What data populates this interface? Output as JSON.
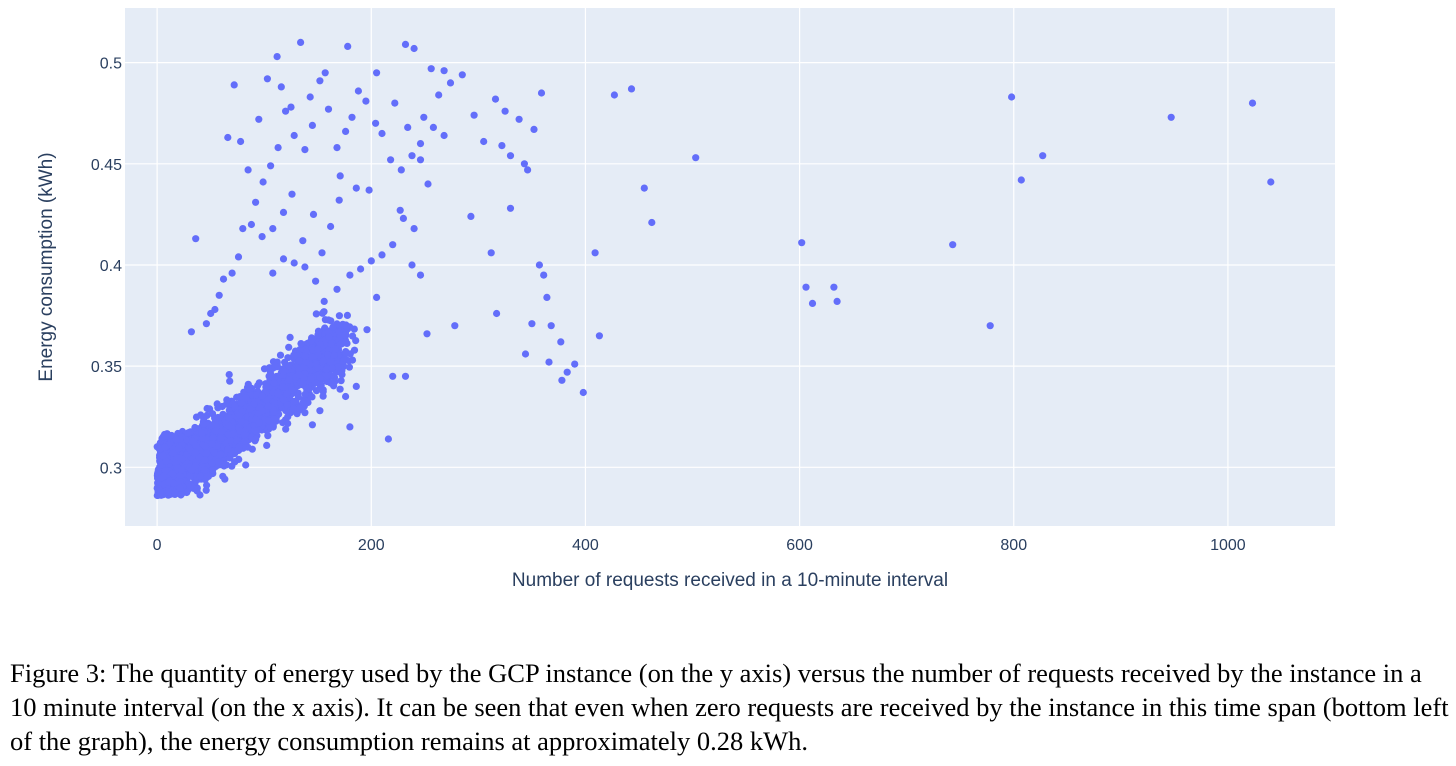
{
  "chart_data": {
    "type": "scatter",
    "xlabel": "Number of requests received in a 10-minute interval",
    "ylabel": "Energy consumption (kWh)",
    "xlim": [
      -30,
      1100
    ],
    "ylim": [
      0.271,
      0.527
    ],
    "xticks": [
      0,
      200,
      400,
      600,
      800,
      1000
    ],
    "yticks": [
      0.3,
      0.35,
      0.4,
      0.45,
      0.5
    ],
    "xtick_labels": [
      "0",
      "200",
      "400",
      "600",
      "800",
      "1000"
    ],
    "ytick_labels": [
      "0.3",
      "0.35",
      "0.4",
      "0.45",
      "0.5"
    ],
    "grid": true,
    "colors": {
      "plot_bg": "#e5ecf6",
      "grid": "#ffffff",
      "marker": "#636efa",
      "text": "#2a3f5f"
    },
    "series": [
      {
        "points": [
          [
            443,
            0.487
          ],
          [
            427,
            0.484
          ],
          [
            359,
            0.485
          ],
          [
            1023,
            0.48
          ],
          [
            798,
            0.483
          ],
          [
            947,
            0.473
          ],
          [
            827,
            0.454
          ],
          [
            503,
            0.453
          ],
          [
            1040,
            0.441
          ],
          [
            807,
            0.442
          ],
          [
            455,
            0.438
          ],
          [
            462,
            0.421
          ],
          [
            602,
            0.411
          ],
          [
            743,
            0.41
          ],
          [
            409,
            0.406
          ],
          [
            606,
            0.389
          ],
          [
            632,
            0.389
          ],
          [
            612,
            0.381
          ],
          [
            635,
            0.382
          ],
          [
            778,
            0.37
          ],
          [
            413,
            0.365
          ],
          [
            357,
            0.4
          ],
          [
            361,
            0.395
          ],
          [
            364,
            0.384
          ],
          [
            368,
            0.37
          ],
          [
            377,
            0.362
          ],
          [
            344,
            0.356
          ],
          [
            383,
            0.347
          ],
          [
            378,
            0.343
          ],
          [
            390,
            0.351
          ],
          [
            398,
            0.337
          ],
          [
            366,
            0.352
          ],
          [
            350,
            0.371
          ],
          [
            317,
            0.376
          ],
          [
            293,
            0.424
          ],
          [
            312,
            0.406
          ],
          [
            330,
            0.428
          ],
          [
            278,
            0.37
          ],
          [
            216,
            0.314
          ],
          [
            180,
            0.32
          ],
          [
            134,
            0.51
          ],
          [
            178,
            0.508
          ],
          [
            232,
            0.509
          ],
          [
            240,
            0.507
          ],
          [
            112,
            0.503
          ],
          [
            205,
            0.495
          ],
          [
            256,
            0.497
          ],
          [
            268,
            0.496
          ],
          [
            285,
            0.494
          ],
          [
            316,
            0.482
          ],
          [
            325,
            0.476
          ],
          [
            338,
            0.472
          ],
          [
            352,
            0.467
          ],
          [
            274,
            0.49
          ],
          [
            263,
            0.484
          ],
          [
            296,
            0.474
          ],
          [
            305,
            0.461
          ],
          [
            322,
            0.459
          ],
          [
            330,
            0.454
          ],
          [
            343,
            0.45
          ],
          [
            346,
            0.447
          ],
          [
            268,
            0.464
          ],
          [
            249,
            0.473
          ],
          [
            246,
            0.46
          ],
          [
            238,
            0.454
          ],
          [
            228,
            0.447
          ],
          [
            218,
            0.452
          ],
          [
            210,
            0.465
          ],
          [
            204,
            0.47
          ],
          [
            195,
            0.481
          ],
          [
            188,
            0.486
          ],
          [
            182,
            0.473
          ],
          [
            176,
            0.466
          ],
          [
            168,
            0.458
          ],
          [
            160,
            0.477
          ],
          [
            152,
            0.491
          ],
          [
            145,
            0.469
          ],
          [
            138,
            0.457
          ],
          [
            128,
            0.464
          ],
          [
            120,
            0.476
          ],
          [
            113,
            0.458
          ],
          [
            106,
            0.449
          ],
          [
            99,
            0.441
          ],
          [
            92,
            0.431
          ],
          [
            85,
            0.447
          ],
          [
            78,
            0.461
          ],
          [
            72,
            0.489
          ],
          [
            66,
            0.463
          ],
          [
            95,
            0.472
          ],
          [
            103,
            0.492
          ],
          [
            116,
            0.488
          ],
          [
            125,
            0.478
          ],
          [
            143,
            0.483
          ],
          [
            157,
            0.495
          ],
          [
            171,
            0.444
          ],
          [
            186,
            0.438
          ],
          [
            198,
            0.437
          ],
          [
            227,
            0.427
          ],
          [
            240,
            0.418
          ],
          [
            253,
            0.44
          ],
          [
            222,
            0.48
          ],
          [
            234,
            0.468
          ],
          [
            246,
            0.452
          ],
          [
            258,
            0.468
          ],
          [
            170,
            0.432
          ],
          [
            162,
            0.419
          ],
          [
            154,
            0.406
          ],
          [
            146,
            0.425
          ],
          [
            136,
            0.412
          ],
          [
            126,
            0.435
          ],
          [
            118,
            0.426
          ],
          [
            108,
            0.418
          ],
          [
            98,
            0.414
          ],
          [
            88,
            0.42
          ],
          [
            80,
            0.418
          ],
          [
            76,
            0.404
          ],
          [
            70,
            0.396
          ],
          [
            62,
            0.393
          ],
          [
            58,
            0.385
          ],
          [
            54,
            0.378
          ],
          [
            50,
            0.376
          ],
          [
            46,
            0.371
          ],
          [
            36,
            0.413
          ],
          [
            32,
            0.367
          ],
          [
            230,
            0.423
          ],
          [
            220,
            0.41
          ],
          [
            210,
            0.405
          ],
          [
            200,
            0.402
          ],
          [
            190,
            0.398
          ],
          [
            180,
            0.395
          ],
          [
            168,
            0.388
          ],
          [
            156,
            0.382
          ],
          [
            148,
            0.392
          ],
          [
            138,
            0.399
          ],
          [
            128,
            0.401
          ],
          [
            118,
            0.403
          ],
          [
            108,
            0.396
          ],
          [
            238,
            0.4
          ],
          [
            246,
            0.395
          ],
          [
            252,
            0.366
          ],
          [
            232,
            0.345
          ],
          [
            220,
            0.345
          ],
          [
            205,
            0.384
          ],
          [
            196,
            0.368
          ],
          [
            186,
            0.34
          ],
          [
            176,
            0.335
          ],
          [
            168,
            0.361
          ],
          [
            160,
            0.348
          ],
          [
            152,
            0.328
          ],
          [
            145,
            0.321
          ],
          [
            138,
            0.327
          ],
          [
            130,
            0.331
          ],
          [
            122,
            0.325
          ]
        ]
      }
    ]
  },
  "caption": "Figure 3: The quantity of energy used by the GCP instance (on the y axis) versus the number of requests received by the instance in a 10 minute interval (on the x axis). It can be seen that even when zero requests are received by the instance in this time span (bottom left of the graph), the energy consumption remains at approximately 0.28 kWh."
}
